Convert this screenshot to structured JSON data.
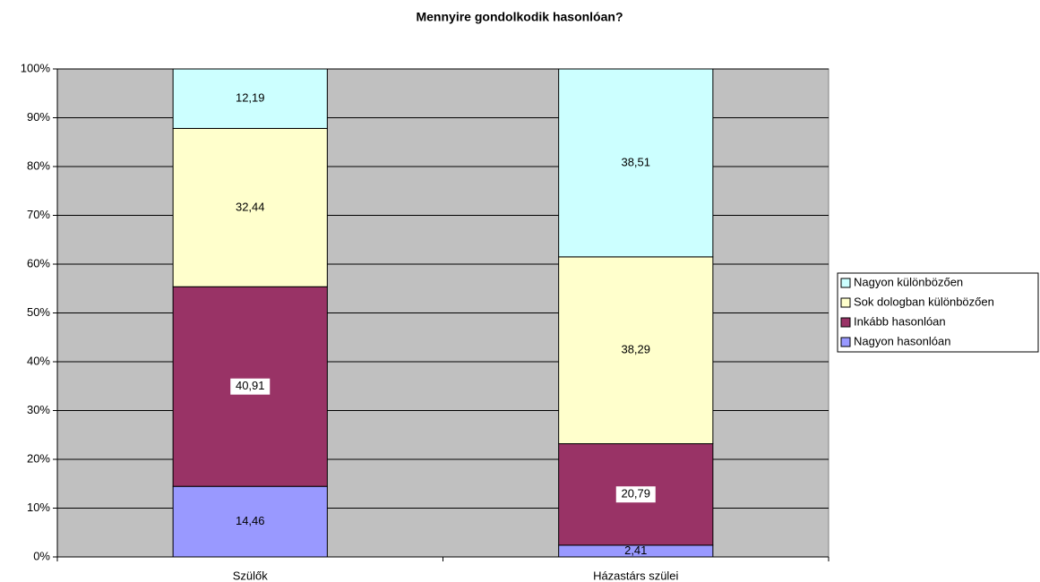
{
  "chart_data": {
    "type": "stacked_bar_percent",
    "title": "Mennyire gondolkodik hasonlóan?",
    "categories": [
      "Szülők",
      "Házastárs szülei"
    ],
    "series": [
      {
        "name": "Nagyon hasonlóan",
        "color": "#9999ff",
        "values": [
          14.46,
          2.41
        ],
        "value_labels": [
          "14,46",
          "2,41"
        ]
      },
      {
        "name": "Inkább hasonlóan",
        "color": "#993366",
        "values": [
          40.91,
          20.79
        ],
        "value_labels": [
          "40,91",
          "20,79"
        ]
      },
      {
        "name": "Sok dologban különbözően",
        "color": "#ffffcc",
        "values": [
          32.44,
          38.29
        ],
        "value_labels": [
          "32,44",
          "38,29"
        ]
      },
      {
        "name": "Nagyon különbözően",
        "color": "#ccffff",
        "values": [
          12.19,
          38.51
        ],
        "value_labels": [
          "12,19",
          "38,51"
        ]
      }
    ],
    "ylim": [
      0,
      100
    ],
    "yticks": [
      {
        "value": 0,
        "label": "0%"
      },
      {
        "value": 10,
        "label": "10%"
      },
      {
        "value": 20,
        "label": "20%"
      },
      {
        "value": 30,
        "label": "30%"
      },
      {
        "value": 40,
        "label": "40%"
      },
      {
        "value": 50,
        "label": "50%"
      },
      {
        "value": 60,
        "label": "60%"
      },
      {
        "value": 70,
        "label": "70%"
      },
      {
        "value": 80,
        "label": "80%"
      },
      {
        "value": 90,
        "label": "90%"
      },
      {
        "value": 100,
        "label": "100%"
      }
    ],
    "grid": true,
    "plot_background": "#c0c0c0",
    "legend": "right"
  }
}
